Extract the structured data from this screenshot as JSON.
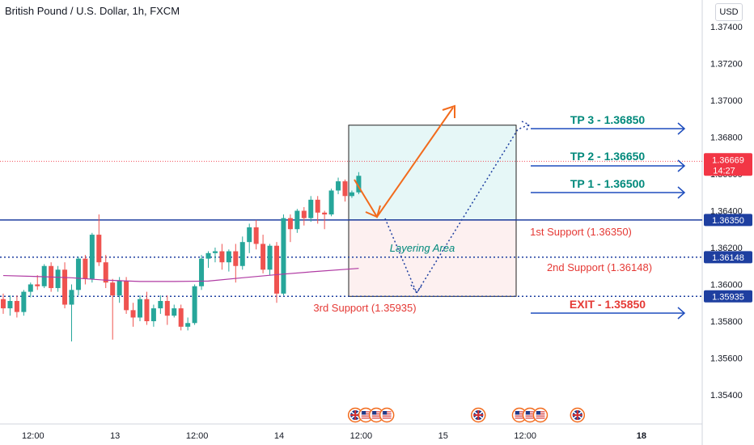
{
  "header": {
    "title": "British Pound / U.S. Dollar, 1h, FXCM",
    "currency_button": "USD"
  },
  "chart_data": {
    "type": "candlestick",
    "title": "British Pound / U.S. Dollar, 1h, FXCM",
    "ylim": [
      1.3528,
      1.3752
    ],
    "y_ticks": [
      1.374,
      1.372,
      1.37,
      1.368,
      1.366,
      1.364,
      1.362,
      1.36,
      1.358,
      1.356,
      1.354
    ],
    "y_tick_labels": [
      "1.37400",
      "1.37200",
      "1.37000",
      "1.36800",
      "1.36600",
      "1.36400",
      "1.36200",
      "1.36000",
      "1.35800",
      "1.35600",
      "1.35400"
    ],
    "x_ticks": [
      {
        "label": "12:00",
        "bar": 4
      },
      {
        "label": "13",
        "bar": 16
      },
      {
        "label": "12:00",
        "bar": 28
      },
      {
        "label": "14",
        "bar": 40
      },
      {
        "label": "12:00",
        "bar": 52
      },
      {
        "label": "15",
        "bar": 64
      },
      {
        "label": "12:00",
        "bar": 76
      },
      {
        "label": "18",
        "bar": 93
      }
    ],
    "candles": [
      [
        1.3592,
        1.3595,
        1.3584,
        1.3587
      ],
      [
        1.3587,
        1.3594,
        1.3583,
        1.3591
      ],
      [
        1.3591,
        1.3594,
        1.3582,
        1.3585
      ],
      [
        1.3585,
        1.3597,
        1.3583,
        1.3596
      ],
      [
        1.3596,
        1.3601,
        1.3593,
        1.36
      ],
      [
        1.36,
        1.3605,
        1.3597,
        1.3599
      ],
      [
        1.3599,
        1.3611,
        1.3598,
        1.361
      ],
      [
        1.361,
        1.3612,
        1.3596,
        1.3598
      ],
      [
        1.3598,
        1.361,
        1.3596,
        1.3608
      ],
      [
        1.3608,
        1.3612,
        1.3587,
        1.3589
      ],
      [
        1.3589,
        1.36,
        1.3569,
        1.3597
      ],
      [
        1.3597,
        1.3615,
        1.3594,
        1.3614
      ],
      [
        1.3614,
        1.3616,
        1.36,
        1.3603
      ],
      [
        1.3603,
        1.3628,
        1.3601,
        1.3627
      ],
      [
        1.3627,
        1.3638,
        1.361,
        1.3612
      ],
      [
        1.3612,
        1.3616,
        1.3598,
        1.3601
      ],
      [
        1.3601,
        1.3603,
        1.357,
        1.3594
      ],
      [
        1.3594,
        1.3604,
        1.359,
        1.3602
      ],
      [
        1.3602,
        1.3604,
        1.3584,
        1.3586
      ],
      [
        1.3586,
        1.359,
        1.3577,
        1.3582
      ],
      [
        1.3582,
        1.3594,
        1.358,
        1.3592
      ],
      [
        1.3592,
        1.3596,
        1.3578,
        1.358
      ],
      [
        1.358,
        1.3589,
        1.3577,
        1.3587
      ],
      [
        1.3587,
        1.3594,
        1.3584,
        1.3591
      ],
      [
        1.3591,
        1.3594,
        1.3578,
        1.3583
      ],
      [
        1.3583,
        1.3589,
        1.3582,
        1.3587
      ],
      [
        1.3587,
        1.3589,
        1.3575,
        1.3577
      ],
      [
        1.3577,
        1.3582,
        1.3575,
        1.3579
      ],
      [
        1.3579,
        1.36,
        1.3578,
        1.3599
      ],
      [
        1.3599,
        1.3616,
        1.3597,
        1.3614
      ],
      [
        1.3614,
        1.3618,
        1.3609,
        1.3617
      ],
      [
        1.3617,
        1.362,
        1.3612,
        1.3618
      ],
      [
        1.3618,
        1.3622,
        1.3608,
        1.3612
      ],
      [
        1.3612,
        1.3619,
        1.3607,
        1.3618
      ],
      [
        1.3618,
        1.3622,
        1.3601,
        1.361
      ],
      [
        1.361,
        1.3626,
        1.3608,
        1.3623
      ],
      [
        1.3623,
        1.3633,
        1.3617,
        1.3631
      ],
      [
        1.3631,
        1.3635,
        1.3619,
        1.3622
      ],
      [
        1.3622,
        1.3627,
        1.3606,
        1.3608
      ],
      [
        1.3608,
        1.3622,
        1.3605,
        1.3621
      ],
      [
        1.3621,
        1.3623,
        1.359,
        1.3595
      ],
      [
        1.3595,
        1.3638,
        1.3594,
        1.3636
      ],
      [
        1.3636,
        1.3638,
        1.3623,
        1.363
      ],
      [
        1.363,
        1.3641,
        1.3628,
        1.364
      ],
      [
        1.364,
        1.3642,
        1.3632,
        1.3636
      ],
      [
        1.3636,
        1.3648,
        1.3634,
        1.3646
      ],
      [
        1.3646,
        1.3648,
        1.3633,
        1.3639
      ],
      [
        1.3639,
        1.364,
        1.363,
        1.3638
      ],
      [
        1.3638,
        1.3652,
        1.3637,
        1.3651
      ],
      [
        1.3651,
        1.3658,
        1.3649,
        1.3656
      ],
      [
        1.3656,
        1.3657,
        1.3645,
        1.3648
      ],
      [
        1.3648,
        1.3651,
        1.3647,
        1.365
      ],
      [
        1.365,
        1.3661,
        1.3649,
        1.3659
      ]
    ],
    "moving_average": [
      [
        0,
        1.36048
      ],
      [
        5,
        1.36043
      ],
      [
        10,
        1.36036
      ],
      [
        15,
        1.36023
      ],
      [
        20,
        1.36016
      ],
      [
        25,
        1.36016
      ],
      [
        30,
        1.36018
      ],
      [
        35,
        1.36036
      ],
      [
        40,
        1.36053
      ],
      [
        45,
        1.36068
      ],
      [
        52,
        1.36087
      ]
    ],
    "levels": [
      {
        "name": "1st Support",
        "value": 1.3635,
        "label": "1st Support (1.36350)",
        "axis_tag": "1.36350",
        "style": "solid",
        "color": "#1e3fa0"
      },
      {
        "name": "2nd Support",
        "value": 1.36148,
        "label": "2nd Support (1.36148)",
        "axis_tag": "1.36148",
        "style": "dotted",
        "color": "#1e3fa0"
      },
      {
        "name": "3rd Support",
        "value": 1.35935,
        "label": "3rd Support (1.35935)",
        "axis_tag": "1.35935",
        "style": "dotted",
        "color": "#1e3fa0"
      }
    ],
    "current_price": {
      "value": 1.36669,
      "label": "1.36669",
      "countdown": "14:27",
      "color": "#f23645"
    },
    "targets": [
      {
        "label": "TP 3 - 1.36850",
        "value": 1.3685,
        "kind": "tp"
      },
      {
        "label": "TP 2 - 1.36650",
        "value": 1.3665,
        "kind": "tp"
      },
      {
        "label": "TP 1 - 1.36500",
        "value": 1.365,
        "kind": "tp"
      },
      {
        "label": "EXIT - 1.35850",
        "value": 1.3585,
        "kind": "exit"
      }
    ],
    "zone": {
      "label": "Layering Area",
      "top": 1.36865,
      "mid": 1.3635,
      "bottom": 1.35935
    },
    "event_icons": {
      "groups": [
        {
          "bar": 51.5,
          "flags": [
            "uk",
            "us",
            "us",
            "us"
          ]
        },
        {
          "bar": 69.5,
          "flags": [
            "uk"
          ]
        },
        {
          "bar": 75.5,
          "flags": [
            "us",
            "us",
            "us"
          ]
        },
        {
          "bar": 84,
          "flags": [
            "uk"
          ]
        }
      ]
    },
    "colors": {
      "up": "#26a69a",
      "down": "#ef5350",
      "ma": "#b03aa3",
      "arrow": "#f26b1d",
      "projection": "#1e3fa0",
      "target_arrow": "#1e4dbd"
    }
  }
}
